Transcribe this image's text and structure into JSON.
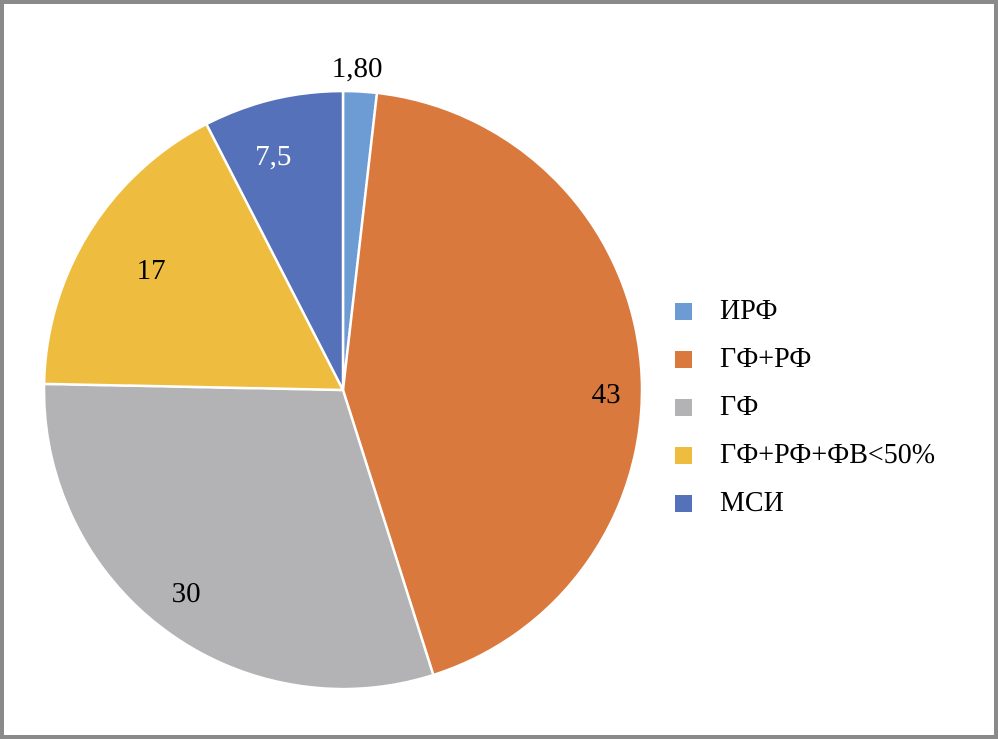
{
  "frame": {
    "background": "#FFFFFF",
    "border_color": "#8A8A8A"
  },
  "chart_data": {
    "type": "pie",
    "title": "",
    "categories": [
      "ИРФ",
      "ГФ+РФ",
      "ГФ",
      "ГФ+РФ+ФВ<50%",
      "МСИ"
    ],
    "values": [
      1.8,
      43,
      30,
      17,
      7.5
    ],
    "value_labels": [
      "1,80",
      "43",
      "30",
      "17",
      "7,5"
    ],
    "colors": [
      "#6D9BD3",
      "#D9793D",
      "#B3B3B5",
      "#EEBD3F",
      "#5571B9"
    ],
    "value_label_colors": [
      "#000000",
      "#000000",
      "#000000",
      "#000000",
      "#FFFFFF"
    ],
    "start_angle_deg": 0,
    "direction": "clockwise",
    "slice_border_color": "#FFFFFF",
    "legend_position": "right-center",
    "layout": {
      "center": [
        339,
        386
      ],
      "radius": 299,
      "label_angles_deg": [
        2.5,
        90.9,
        217.7,
        302.0,
        343.4
      ],
      "label_radius_fractions": [
        1.078,
        0.88,
        0.858,
        0.757,
        0.817
      ]
    }
  }
}
